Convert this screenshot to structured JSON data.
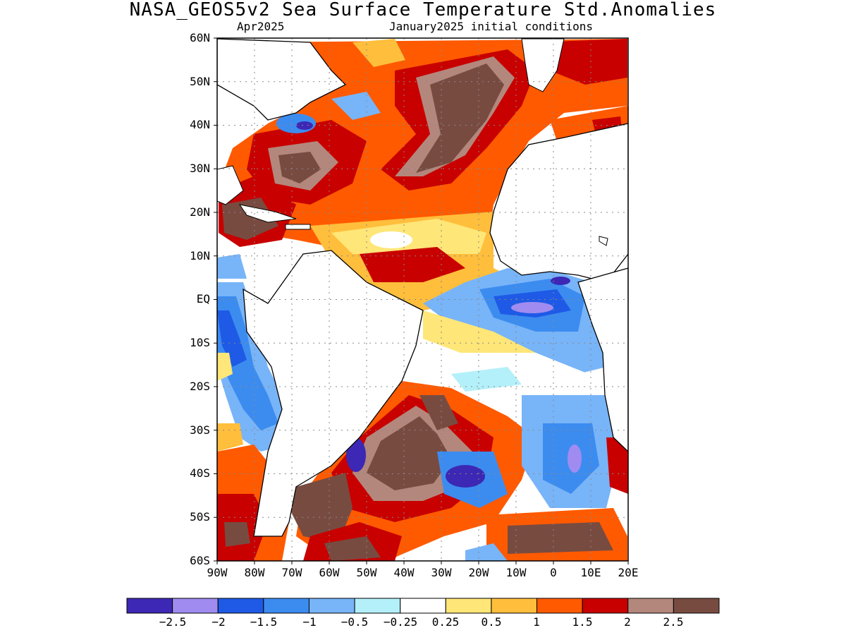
{
  "title": "NASA_GEOS5v2 Sea Surface Temperature Std.Anomalies",
  "subtitle_left": "Apr2025",
  "subtitle_right": "January2025 initial conditions",
  "lat_labels": [
    "60N",
    "50N",
    "40N",
    "30N",
    "20N",
    "10N",
    "EQ",
    "10S",
    "20S",
    "30S",
    "40S",
    "50S",
    "60S"
  ],
  "lon_labels": [
    "90W",
    "80W",
    "70W",
    "60W",
    "50W",
    "40W",
    "30W",
    "20W",
    "10W",
    "0",
    "10E",
    "20E"
  ],
  "colorbar": {
    "colors": [
      "#3c28b4",
      "#a08cf0",
      "#1e5ae6",
      "#3c8cf0",
      "#78b4f8",
      "#b4f0fa",
      "#ffffff",
      "#ffe678",
      "#ffbe3c",
      "#ff5a00",
      "#c80000",
      "#b4877d",
      "#784b41"
    ],
    "labels": [
      "−2.5",
      "−2",
      "−1.5",
      "−1",
      "−0.5",
      "−0.25",
      "0.25",
      "0.5",
      "1",
      "1.5",
      "2",
      "2.5"
    ]
  },
  "chart_data": {
    "type": "heatmap",
    "title": "NASA_GEOS5v2 Sea Surface Temperature Std.Anomalies",
    "subtitle": "Apr2025 — January2025 initial conditions",
    "x_range": [
      -90,
      20
    ],
    "y_range": [
      -60,
      60
    ],
    "contour_levels": [
      -2.5,
      -2,
      -1.5,
      -1,
      -0.5,
      -0.25,
      0.25,
      0.5,
      1,
      1.5,
      2,
      2.5
    ],
    "regions": [
      {
        "lon": [
          -80,
          -10
        ],
        "lat": [
          15,
          60
        ],
        "value": 1.6
      },
      {
        "lon": [
          -40,
          -5
        ],
        "lat": [
          25,
          55
        ],
        "value": 2.6
      },
      {
        "lon": [
          -70,
          -50
        ],
        "lat": [
          25,
          40
        ],
        "value": 2.3
      },
      {
        "lon": [
          -88,
          -60
        ],
        "lat": [
          12,
          30
        ],
        "value": 2.2
      },
      {
        "lon": [
          -60,
          -20
        ],
        "lat": [
          0,
          20
        ],
        "value": 0.9
      },
      {
        "lon": [
          -45,
          -15
        ],
        "lat": [
          2,
          12
        ],
        "value": 1.6
      },
      {
        "lon": [
          -20,
          10
        ],
        "lat": [
          -5,
          8
        ],
        "value": -1.2
      },
      {
        "lon": [
          -12,
          0
        ],
        "lat": [
          -2,
          1
        ],
        "value": -2.2
      },
      {
        "lon": [
          -90,
          -78
        ],
        "lat": [
          -30,
          5
        ],
        "value": -1.0
      },
      {
        "lon": [
          -75,
          -65
        ],
        "lat": [
          -35,
          -15
        ],
        "value": -1.2
      },
      {
        "lon": [
          -45,
          -25
        ],
        "lat": [
          -25,
          -15
        ],
        "value": 0.3
      },
      {
        "lon": [
          -60,
          -10
        ],
        "lat": [
          -60,
          -25
        ],
        "value": 1.7
      },
      {
        "lon": [
          -55,
          -30
        ],
        "lat": [
          -55,
          -30
        ],
        "value": 2.6
      },
      {
        "lon": [
          -20,
          0
        ],
        "lat": [
          -45,
          -38
        ],
        "value": -2.3
      },
      {
        "lon": [
          0,
          20
        ],
        "lat": [
          -40,
          -25
        ],
        "value": -1.0
      },
      {
        "lon": [
          -85,
          -65
        ],
        "lat": [
          -60,
          -35
        ],
        "value": 1.4
      },
      {
        "lon": [
          -60,
          -40
        ],
        "lat": [
          -58,
          -42
        ],
        "value": 2.6
      },
      {
        "lon": [
          0,
          20
        ],
        "lat": [
          -60,
          -48
        ],
        "value": 2.3
      }
    ]
  }
}
